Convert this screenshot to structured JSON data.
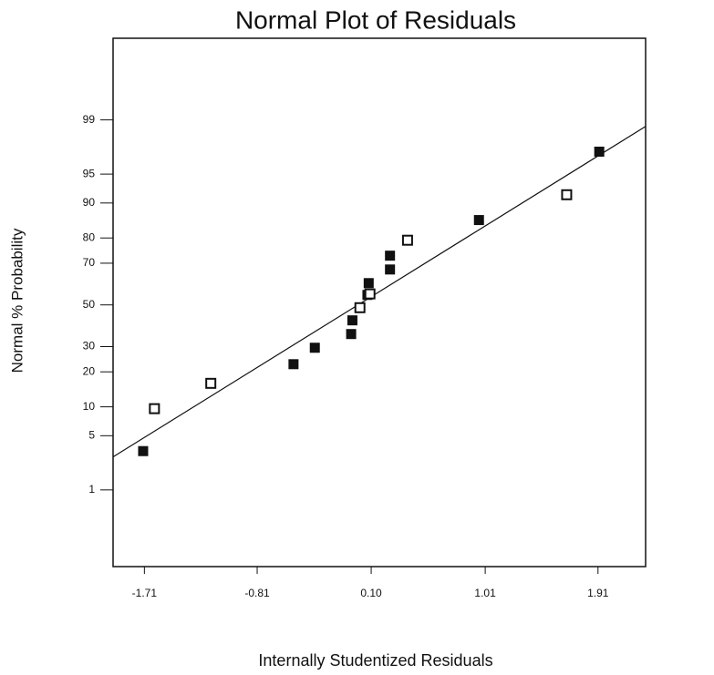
{
  "chart_data": {
    "type": "probability-scatter",
    "title": "Normal Plot of Residuals",
    "x_label": "Internally Studentized Residuals",
    "y_label": "Normal % Probability",
    "yscale": "normal-probability",
    "xlim": [
      -1.96,
      2.29
    ],
    "ylim": [
      0.05,
      99.96
    ],
    "xticks": [
      {
        "value": -1.71,
        "label": "-1.71"
      },
      {
        "value": -0.81,
        "label": "-0.81"
      },
      {
        "value": 0.1,
        "label": "0.10"
      },
      {
        "value": 1.01,
        "label": "1.01"
      },
      {
        "value": 1.91,
        "label": "1.91"
      }
    ],
    "yticks": [
      1,
      5,
      10,
      20,
      30,
      50,
      70,
      80,
      90,
      95,
      99
    ],
    "color": "#111111",
    "series": [
      {
        "marker": "filled",
        "x": [
          -1.72,
          -0.52,
          -0.35,
          -0.06,
          -0.05,
          0.07,
          0.08,
          0.25,
          0.25,
          0.96,
          1.92
        ],
        "values": [
          3.3,
          22.8,
          29.5,
          35.7,
          42.3,
          55.0,
          60.8,
          67.2,
          73.2,
          85.7,
          97.3
        ]
      },
      {
        "marker": "open",
        "x": [
          -1.63,
          -1.18,
          0.01,
          0.09,
          0.39,
          1.66
        ],
        "values": [
          9.6,
          16.2,
          48.6,
          55.5,
          79.2,
          91.7
        ]
      }
    ],
    "fit_line": {
      "x": [
        -1.96,
        2.29
      ],
      "values": [
        2.8,
        98.76
      ]
    }
  }
}
